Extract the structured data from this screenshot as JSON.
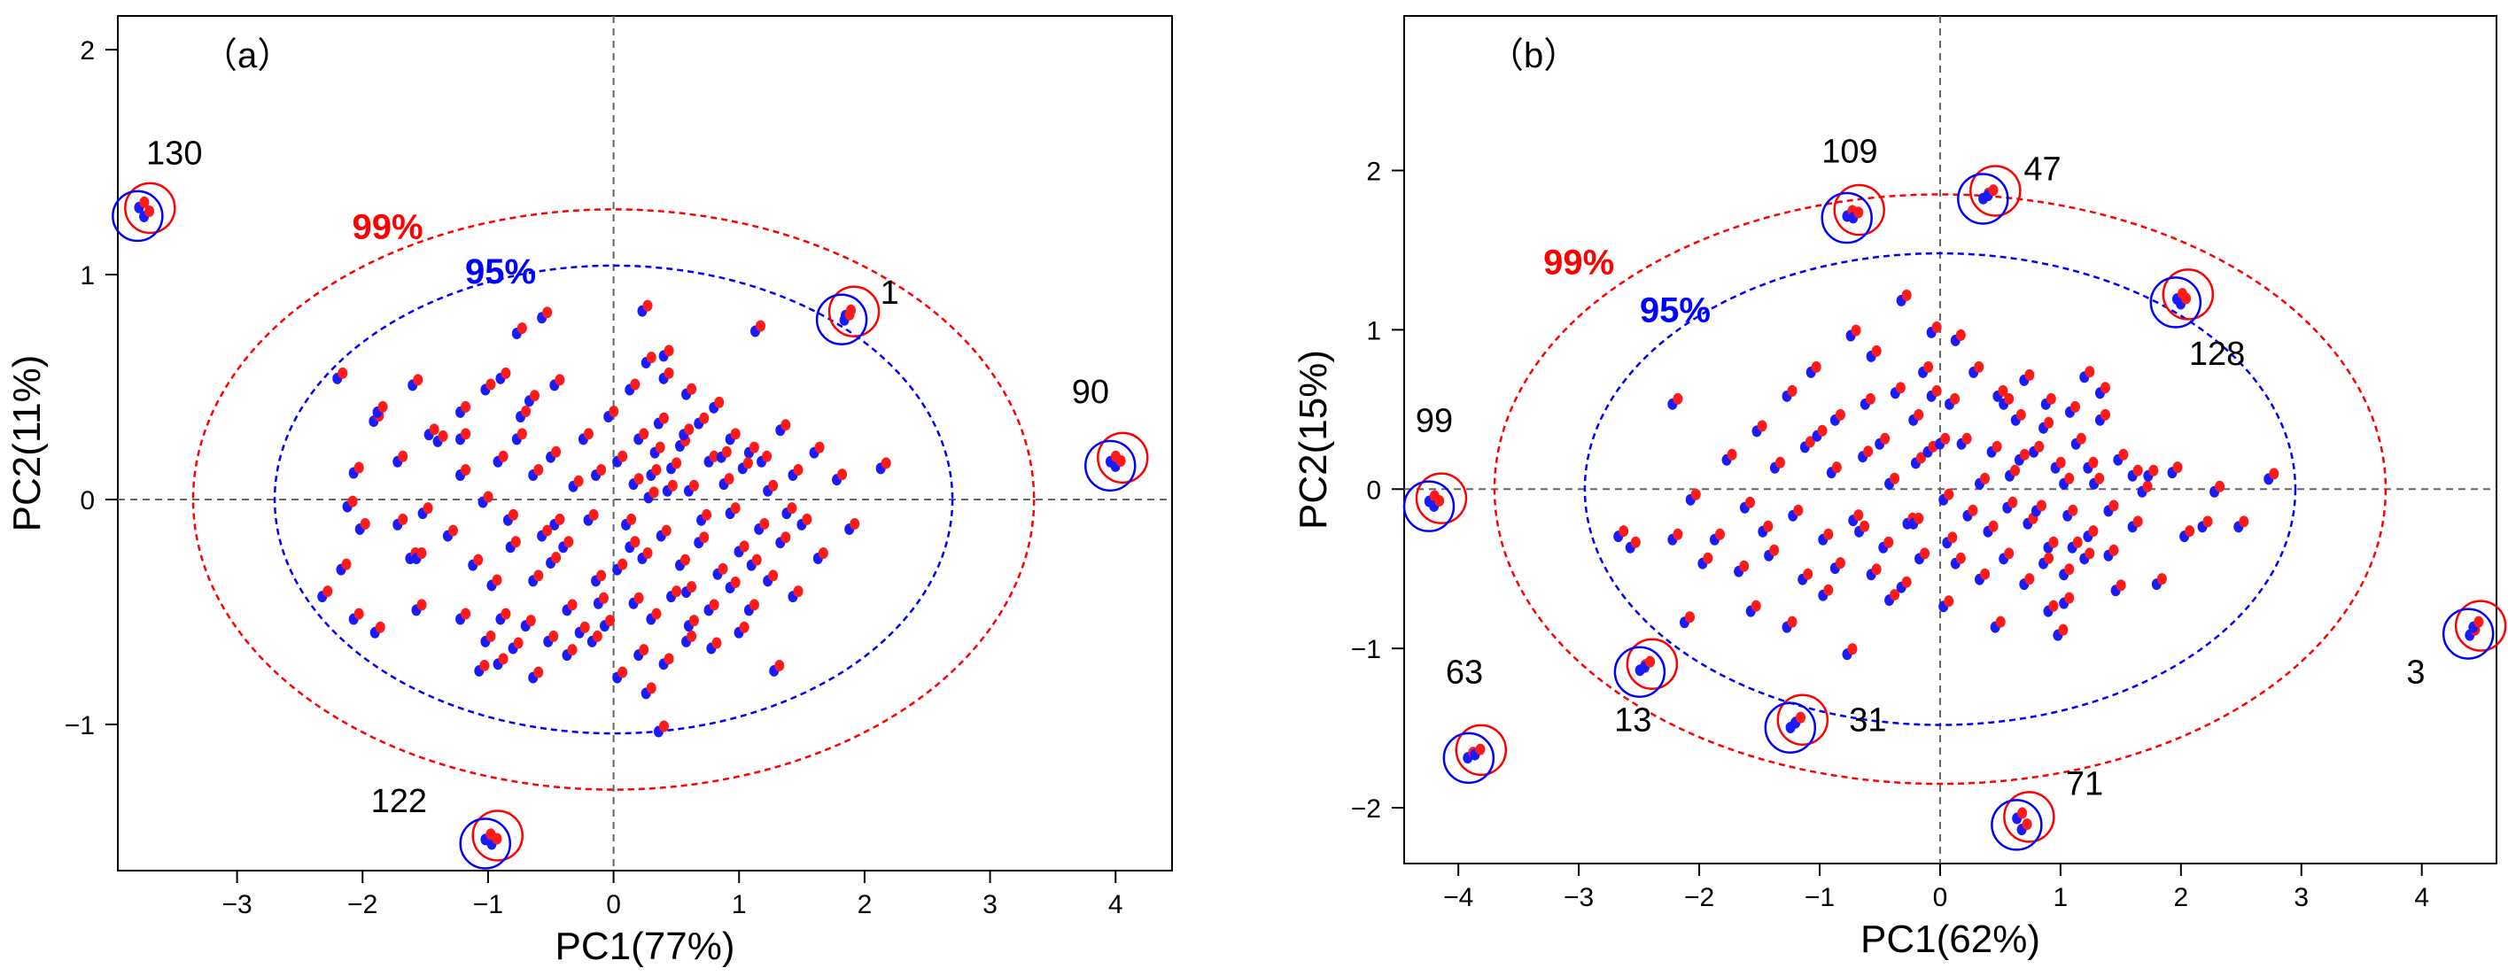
{
  "colors": {
    "conf99": "#ff0000",
    "conf95": "#0000ff",
    "point_red": "#ff1a1a",
    "point_blue": "#1a1aff",
    "axis": "#000000",
    "origin_line": "#666666"
  },
  "chart_data": [
    {
      "type": "scatter",
      "panel_label": "（a）",
      "xlabel": "PC1(77%)",
      "ylabel": "PC2(11%)",
      "xlim": [
        -3.95,
        4.45
      ],
      "ylim": [
        -1.65,
        2.15
      ],
      "xticks": [
        -3,
        -2,
        -1,
        0,
        1,
        2,
        3,
        4
      ],
      "yticks": [
        -1,
        0,
        1,
        2
      ],
      "xtick_labels": [
        "−3",
        "−2",
        "−1",
        "0",
        "1",
        "2",
        "3",
        "4"
      ],
      "ytick_labels": [
        "−1",
        "0",
        "1",
        "2"
      ],
      "grid": false,
      "origin_lines": true,
      "ellipses": [
        {
          "label": "99%",
          "color": "#ff0000",
          "cx": 0,
          "cy": 0,
          "rx": 3.35,
          "ry": 1.29,
          "label_at": [
            -1.8,
            1.16
          ]
        },
        {
          "label": "95%",
          "color": "#0000ff",
          "cx": 0,
          "cy": 0,
          "rx": 2.7,
          "ry": 1.04,
          "label_at": [
            -0.9,
            0.96
          ]
        }
      ],
      "outliers": [
        {
          "id": "130",
          "x": -3.75,
          "y": 1.28,
          "label_at": [
            -3.5,
            1.49
          ]
        },
        {
          "id": "1",
          "x": 1.86,
          "y": 0.82,
          "label_at": [
            2.2,
            0.87
          ]
        },
        {
          "id": "90",
          "x": 4.0,
          "y": 0.17,
          "label_at": [
            3.8,
            0.43
          ]
        },
        {
          "id": "122",
          "x": -0.98,
          "y": -1.51,
          "label_at": [
            -1.71,
            -1.39
          ]
        }
      ],
      "points": [
        [
          -3.76,
          1.31
        ],
        [
          -3.72,
          1.27
        ],
        [
          1.87,
          0.83
        ],
        [
          1.86,
          0.81
        ],
        [
          4.02,
          0.16
        ],
        [
          3.98,
          0.18
        ],
        [
          -0.95,
          -1.52
        ],
        [
          -1.0,
          -1.5
        ],
        [
          -2.18,
          0.55
        ],
        [
          -1.89,
          0.36
        ],
        [
          -1.86,
          0.4
        ],
        [
          -1.58,
          0.52
        ],
        [
          -1.38,
          0.27
        ],
        [
          -1.2,
          0.4
        ],
        [
          -1.0,
          0.5
        ],
        [
          -0.75,
          0.28
        ],
        [
          -0.65,
          0.45
        ],
        [
          -0.45,
          0.52
        ],
        [
          -0.88,
          0.55
        ],
        [
          -0.72,
          0.38
        ],
        [
          -0.48,
          0.2
        ],
        [
          -0.75,
          0.75
        ],
        [
          -0.55,
          0.82
        ],
        [
          -0.9,
          0.18
        ],
        [
          -1.2,
          0.12
        ],
        [
          -1.02,
          0.0
        ],
        [
          -0.82,
          -0.08
        ],
        [
          -0.62,
          0.12
        ],
        [
          -0.45,
          -0.1
        ],
        [
          -0.3,
          0.07
        ],
        [
          -0.12,
          0.12
        ],
        [
          -0.18,
          -0.08
        ],
        [
          -2.0,
          -0.12
        ],
        [
          -2.05,
          0.13
        ],
        [
          -1.7,
          0.18
        ],
        [
          -1.5,
          -0.05
        ],
        [
          -1.3,
          -0.15
        ],
        [
          -1.6,
          -0.25
        ],
        [
          -2.15,
          -0.3
        ],
        [
          -2.3,
          -0.42
        ],
        [
          -2.05,
          -0.52
        ],
        [
          -1.88,
          -0.58
        ],
        [
          -1.55,
          -0.48
        ],
        [
          -1.2,
          -0.52
        ],
        [
          -1.1,
          -0.28
        ],
        [
          -0.95,
          -0.37
        ],
        [
          -0.8,
          -0.2
        ],
        [
          -0.62,
          -0.35
        ],
        [
          -0.48,
          -0.27
        ],
        [
          -0.35,
          -0.48
        ],
        [
          -0.12,
          -0.35
        ],
        [
          -0.25,
          -0.58
        ],
        [
          -0.5,
          -0.62
        ],
        [
          -0.68,
          -0.55
        ],
        [
          -0.88,
          -0.52
        ],
        [
          -1.0,
          -0.62
        ],
        [
          -0.9,
          -0.72
        ],
        [
          -1.05,
          -0.75
        ],
        [
          -0.78,
          -0.65
        ],
        [
          -0.62,
          -0.78
        ],
        [
          -0.35,
          -0.68
        ],
        [
          -0.15,
          -0.62
        ],
        [
          -0.05,
          -0.55
        ],
        [
          -1.55,
          -0.25
        ],
        [
          0.15,
          0.5
        ],
        [
          0.28,
          0.62
        ],
        [
          0.42,
          0.55
        ],
        [
          0.6,
          0.48
        ],
        [
          0.22,
          0.28
        ],
        [
          0.38,
          0.35
        ],
        [
          0.55,
          0.25
        ],
        [
          0.7,
          0.35
        ],
        [
          0.82,
          0.42
        ],
        [
          0.95,
          0.28
        ],
        [
          1.1,
          0.22
        ],
        [
          1.2,
          0.18
        ],
        [
          1.35,
          0.32
        ],
        [
          1.15,
          0.76
        ],
        [
          0.25,
          0.85
        ],
        [
          0.42,
          0.65
        ],
        [
          0.05,
          0.18
        ],
        [
          0.18,
          0.08
        ],
        [
          0.32,
          0.12
        ],
        [
          0.48,
          0.15
        ],
        [
          0.62,
          0.05
        ],
        [
          0.78,
          0.18
        ],
        [
          0.9,
          0.08
        ],
        [
          1.05,
          0.15
        ],
        [
          1.25,
          0.05
        ],
        [
          1.45,
          0.12
        ],
        [
          1.62,
          0.22
        ],
        [
          1.8,
          0.1
        ],
        [
          2.15,
          0.15
        ],
        [
          0.12,
          -0.1
        ],
        [
          0.25,
          -0.25
        ],
        [
          0.4,
          -0.15
        ],
        [
          0.55,
          -0.28
        ],
        [
          0.7,
          -0.18
        ],
        [
          0.85,
          -0.32
        ],
        [
          1.02,
          -0.22
        ],
        [
          1.18,
          -0.12
        ],
        [
          1.35,
          -0.18
        ],
        [
          1.52,
          -0.1
        ],
        [
          1.65,
          -0.25
        ],
        [
          1.9,
          -0.12
        ],
        [
          0.18,
          -0.45
        ],
        [
          0.32,
          -0.52
        ],
        [
          0.48,
          -0.42
        ],
        [
          0.62,
          -0.55
        ],
        [
          0.78,
          -0.48
        ],
        [
          0.95,
          -0.38
        ],
        [
          1.1,
          -0.48
        ],
        [
          1.25,
          -0.35
        ],
        [
          1.45,
          -0.42
        ],
        [
          0.22,
          -0.68
        ],
        [
          0.42,
          -0.72
        ],
        [
          0.6,
          -0.62
        ],
        [
          0.8,
          -0.65
        ],
        [
          1.02,
          -0.58
        ],
        [
          0.05,
          -0.78
        ],
        [
          0.28,
          -0.85
        ],
        [
          1.3,
          -0.75
        ],
        [
          0.38,
          -1.02
        ],
        [
          -0.02,
          0.38
        ],
        [
          0.05,
          -0.3
        ],
        [
          -0.22,
          0.28
        ],
        [
          0.3,
          0.02
        ],
        [
          0.58,
          0.3
        ],
        [
          0.72,
          -0.08
        ],
        [
          0.88,
          0.2
        ],
        [
          1.12,
          -0.28
        ],
        [
          -0.38,
          -0.2
        ],
        [
          0.15,
          -0.2
        ],
        [
          0.6,
          -0.4
        ],
        [
          0.35,
          0.22
        ],
        [
          -1.7,
          -0.1
        ],
        [
          -1.45,
          0.3
        ],
        [
          -1.2,
          0.28
        ],
        [
          -2.1,
          -0.02
        ],
        [
          -0.55,
          -0.15
        ],
        [
          -0.1,
          -0.45
        ],
        [
          0.45,
          0.05
        ],
        [
          0.95,
          -0.05
        ],
        [
          1.4,
          -0.05
        ]
      ]
    },
    {
      "type": "scatter",
      "panel_label": "（b）",
      "xlabel": "PC1(62%)",
      "ylabel": "PC2(15%)",
      "xlim": [
        -4.45,
        4.62
      ],
      "ylim": [
        -2.35,
        2.97
      ],
      "xticks": [
        -4,
        -3,
        -2,
        -1,
        0,
        1,
        2,
        3,
        4
      ],
      "yticks": [
        -2,
        -1,
        0,
        1,
        2
      ],
      "xtick_labels": [
        "−4",
        "−3",
        "−2",
        "−1",
        "0",
        "1",
        "2",
        "3",
        "4"
      ],
      "ytick_labels": [
        "−2",
        "−1",
        "0",
        "1",
        "2"
      ],
      "grid": false,
      "origin_lines": true,
      "ellipses": [
        {
          "label": "99%",
          "color": "#ff0000",
          "cx": 0,
          "cy": 0,
          "rx": 3.7,
          "ry": 1.85,
          "label_at": [
            -3.0,
            1.35
          ]
        },
        {
          "label": "95%",
          "color": "#0000ff",
          "cx": 0,
          "cy": 0,
          "rx": 2.95,
          "ry": 1.48,
          "label_at": [
            -2.2,
            1.05
          ]
        },
        {
          "label": "",
          "color": "#0000ff",
          "cx": 0,
          "cy": 0,
          "rx": 0,
          "ry": 0,
          "label_at": [
            0,
            0
          ]
        }
      ],
      "outliers": [
        {
          "id": "109",
          "x": -0.73,
          "y": 1.73,
          "label_at": [
            -0.75,
            2.05
          ]
        },
        {
          "id": "47",
          "x": 0.4,
          "y": 1.85,
          "label_at": [
            0.85,
            1.94
          ]
        },
        {
          "id": "128",
          "x": 2.0,
          "y": 1.2,
          "label_at": [
            2.3,
            0.78
          ]
        },
        {
          "id": "99",
          "x": -4.2,
          "y": -0.08,
          "label_at": [
            -4.2,
            0.36
          ]
        },
        {
          "id": "3",
          "x": 4.43,
          "y": -0.88,
          "label_at": [
            3.95,
            -1.22
          ]
        },
        {
          "id": "63",
          "x": -3.87,
          "y": -1.66,
          "label_at": [
            -3.95,
            -1.22
          ]
        },
        {
          "id": "13",
          "x": -2.45,
          "y": -1.12,
          "label_at": [
            -2.55,
            -1.52
          ]
        },
        {
          "id": "31",
          "x": -1.2,
          "y": -1.47,
          "label_at": [
            -0.6,
            -1.52
          ]
        },
        {
          "id": "71",
          "x": 0.68,
          "y": -2.08,
          "label_at": [
            1.2,
            -1.92
          ]
        }
      ],
      "points": [
        [
          -0.75,
          1.73
        ],
        [
          -0.7,
          1.72
        ],
        [
          0.38,
          1.84
        ],
        [
          0.42,
          1.86
        ],
        [
          1.99,
          1.21
        ],
        [
          2.02,
          1.18
        ],
        [
          -4.22,
          -0.06
        ],
        [
          -4.18,
          -0.09
        ],
        [
          4.42,
          -0.9
        ],
        [
          4.45,
          -0.85
        ],
        [
          -3.9,
          -1.67
        ],
        [
          -3.84,
          -1.65
        ],
        [
          -2.47,
          -1.12
        ],
        [
          -2.43,
          -1.1
        ],
        [
          -1.22,
          -1.48
        ],
        [
          -1.18,
          -1.45
        ],
        [
          0.66,
          -2.05
        ],
        [
          0.7,
          -2.12
        ],
        [
          -0.05,
          1.0
        ],
        [
          -0.3,
          1.2
        ],
        [
          -0.55,
          0.85
        ],
        [
          -0.72,
          0.98
        ],
        [
          -1.05,
          0.75
        ],
        [
          -1.25,
          0.6
        ],
        [
          -0.85,
          0.45
        ],
        [
          -0.6,
          0.55
        ],
        [
          -0.35,
          0.62
        ],
        [
          -0.12,
          0.75
        ],
        [
          -0.48,
          0.3
        ],
        [
          -0.2,
          0.45
        ],
        [
          -1.5,
          0.38
        ],
        [
          -1.35,
          0.15
        ],
        [
          -1.1,
          0.28
        ],
        [
          -0.88,
          0.12
        ],
        [
          -0.62,
          0.22
        ],
        [
          -0.4,
          0.05
        ],
        [
          -0.18,
          0.18
        ],
        [
          -1.6,
          -0.1
        ],
        [
          -1.45,
          -0.25
        ],
        [
          -1.2,
          -0.15
        ],
        [
          -0.95,
          -0.3
        ],
        [
          -0.7,
          -0.18
        ],
        [
          -0.45,
          -0.35
        ],
        [
          -0.25,
          -0.2
        ],
        [
          -1.85,
          -0.3
        ],
        [
          -1.65,
          -0.5
        ],
        [
          -1.4,
          -0.4
        ],
        [
          -1.12,
          -0.55
        ],
        [
          -0.85,
          -0.48
        ],
        [
          -0.55,
          -0.52
        ],
        [
          -0.3,
          -0.6
        ],
        [
          -0.15,
          -0.42
        ],
        [
          -2.05,
          -0.05
        ],
        [
          -2.2,
          0.55
        ],
        [
          -2.65,
          -0.28
        ],
        [
          -2.2,
          -0.3
        ],
        [
          -2.1,
          -0.82
        ],
        [
          -1.95,
          -0.45
        ],
        [
          -1.55,
          -0.75
        ],
        [
          -0.95,
          -0.65
        ],
        [
          -0.75,
          -1.02
        ],
        [
          -0.4,
          -0.68
        ],
        [
          0.05,
          -0.72
        ],
        [
          0.15,
          0.95
        ],
        [
          0.1,
          0.55
        ],
        [
          0.3,
          0.75
        ],
        [
          0.5,
          0.6
        ],
        [
          0.65,
          0.45
        ],
        [
          0.72,
          0.7
        ],
        [
          0.9,
          0.55
        ],
        [
          1.1,
          0.5
        ],
        [
          1.22,
          0.72
        ],
        [
          1.35,
          0.45
        ],
        [
          0.2,
          0.3
        ],
        [
          0.45,
          0.25
        ],
        [
          0.6,
          0.1
        ],
        [
          0.8,
          0.25
        ],
        [
          0.98,
          0.15
        ],
        [
          1.15,
          0.3
        ],
        [
          1.3,
          0.05
        ],
        [
          1.5,
          0.2
        ],
        [
          1.7,
          0.0
        ],
        [
          1.95,
          0.12
        ],
        [
          2.3,
          0.0
        ],
        [
          2.75,
          0.08
        ],
        [
          0.05,
          -0.05
        ],
        [
          0.25,
          -0.15
        ],
        [
          0.42,
          -0.25
        ],
        [
          0.58,
          -0.1
        ],
        [
          0.75,
          -0.2
        ],
        [
          0.92,
          -0.35
        ],
        [
          1.08,
          -0.15
        ],
        [
          1.25,
          -0.28
        ],
        [
          1.42,
          -0.12
        ],
        [
          1.62,
          -0.22
        ],
        [
          2.05,
          -0.28
        ],
        [
          2.5,
          -0.22
        ],
        [
          0.15,
          -0.45
        ],
        [
          0.35,
          -0.55
        ],
        [
          0.55,
          -0.42
        ],
        [
          0.72,
          -0.58
        ],
        [
          0.88,
          -0.45
        ],
        [
          1.05,
          -0.52
        ],
        [
          1.22,
          -0.42
        ],
        [
          1.48,
          -0.62
        ],
        [
          1.82,
          -0.58
        ],
        [
          2.2,
          -0.22
        ],
        [
          1.0,
          -0.9
        ],
        [
          0.92,
          -0.75
        ],
        [
          1.05,
          -0.7
        ],
        [
          0.48,
          -0.85
        ],
        [
          0.08,
          -0.32
        ],
        [
          -0.08,
          0.25
        ],
        [
          1.35,
          0.62
        ],
        [
          1.25,
          0.15
        ],
        [
          0.68,
          0.2
        ],
        [
          0.88,
          0.4
        ],
        [
          1.42,
          -0.4
        ],
        [
          -2.55,
          -0.35
        ],
        [
          -1.75,
          0.2
        ],
        [
          -1.25,
          -0.85
        ],
        [
          0.02,
          0.3
        ],
        [
          0.55,
          0.55
        ],
        [
          1.05,
          0.05
        ],
        [
          -0.2,
          -0.2
        ],
        [
          -0.65,
          -0.25
        ],
        [
          1.75,
          0.1
        ],
        [
          0.35,
          0.05
        ],
        [
          -0.05,
          0.6
        ],
        [
          0.82,
          -0.12
        ],
        [
          1.12,
          -0.35
        ],
        [
          1.62,
          0.1
        ],
        [
          -1.0,
          0.35
        ]
      ]
    }
  ]
}
